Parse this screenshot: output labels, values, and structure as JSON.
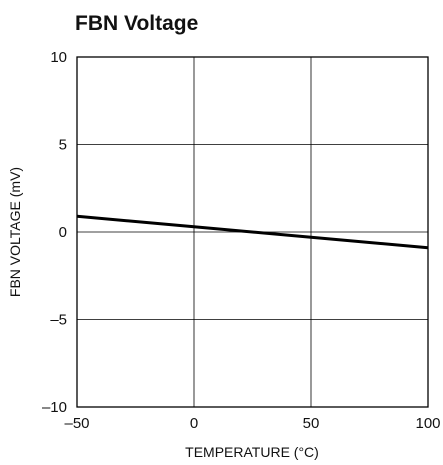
{
  "chart_data": {
    "type": "line",
    "title": "FBN Voltage",
    "xlabel": "TEMPERATURE (°C)",
    "ylabel": "FBN VOLTAGE (mV)",
    "xlim": [
      -50,
      100
    ],
    "ylim": [
      -10,
      10
    ],
    "xticks": [
      -50,
      0,
      50,
      100
    ],
    "xtick_labels": [
      "–50",
      "0",
      "50",
      "100"
    ],
    "yticks": [
      10,
      5,
      0,
      -5,
      -10
    ],
    "ytick_labels": [
      "10",
      "5",
      "0",
      "–5",
      "–10"
    ],
    "grid": true,
    "series": [
      {
        "x": [
          -50,
          0,
          50,
          100
        ],
        "y": [
          0.9,
          0.3,
          -0.3,
          -0.9
        ]
      }
    ],
    "colors": {
      "line": "#000000",
      "grid": "#000000",
      "axis": "#000000"
    }
  }
}
